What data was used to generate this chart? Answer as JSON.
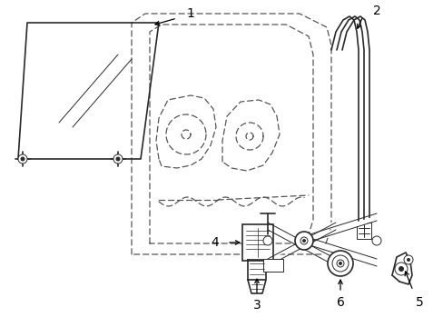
{
  "bg_color": "#ffffff",
  "line_color": "#2a2a2a",
  "dash_color": "#555555",
  "label_color": "#000000",
  "figsize": [
    4.89,
    3.6
  ],
  "dpi": 100,
  "lw_main": 1.2,
  "lw_thin": 0.7,
  "lw_dash": 0.9
}
